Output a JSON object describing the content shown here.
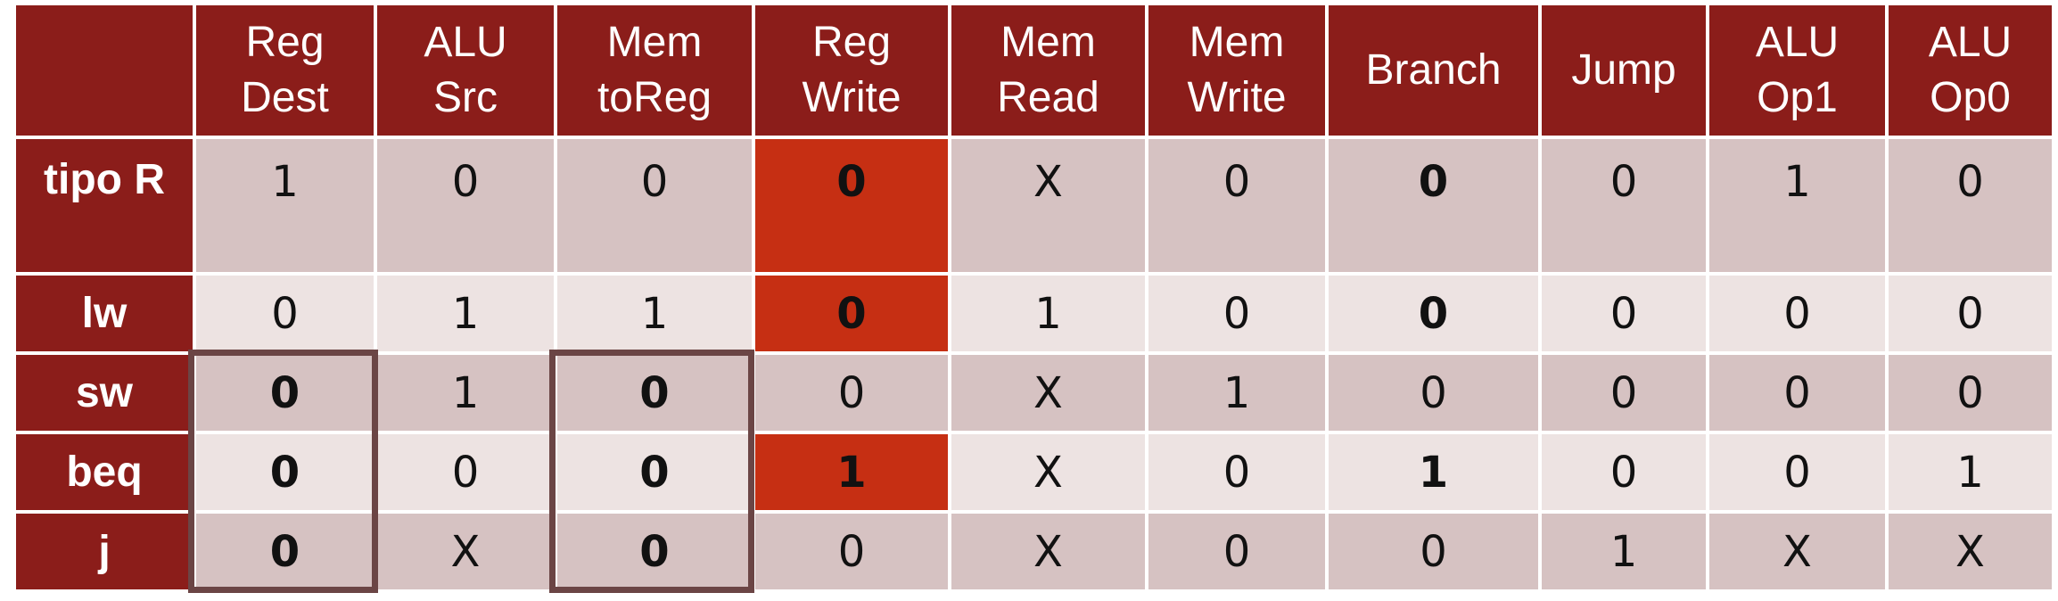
{
  "table": {
    "headers": [
      [
        "Reg",
        "Dest"
      ],
      [
        "ALU",
        "Src"
      ],
      [
        "Mem",
        "toReg"
      ],
      [
        "Reg",
        "Write"
      ],
      [
        "Mem",
        "Read"
      ],
      [
        "Mem",
        "Write"
      ],
      [
        "Branch",
        ""
      ],
      [
        "Jump",
        ""
      ],
      [
        "ALU",
        "Op1"
      ],
      [
        "ALU",
        "Op0"
      ]
    ],
    "rows": [
      {
        "label": "tipo R",
        "values": [
          "1",
          "0",
          "0",
          "0",
          "X",
          "0",
          "0",
          "0",
          "1",
          "0"
        ]
      },
      {
        "label": "lw",
        "values": [
          "0",
          "1",
          "1",
          "0",
          "1",
          "0",
          "0",
          "0",
          "0",
          "0"
        ]
      },
      {
        "label": "sw",
        "values": [
          "0",
          "1",
          "0",
          "0",
          "X",
          "1",
          "0",
          "0",
          "0",
          "0"
        ]
      },
      {
        "label": "beq",
        "values": [
          "0",
          "0",
          "0",
          "1",
          "X",
          "0",
          "1",
          "0",
          "0",
          "1"
        ]
      },
      {
        "label": "j",
        "values": [
          "0",
          "X",
          "0",
          "0",
          "X",
          "0",
          "0",
          "1",
          "X",
          "X"
        ]
      }
    ]
  },
  "colors": {
    "header_bg": "#8b1d1a",
    "highlight_cell": "#c62f13",
    "row_dark": "#d6c2c2",
    "row_light": "#ede3e2",
    "outline_box": "#6b4545"
  }
}
